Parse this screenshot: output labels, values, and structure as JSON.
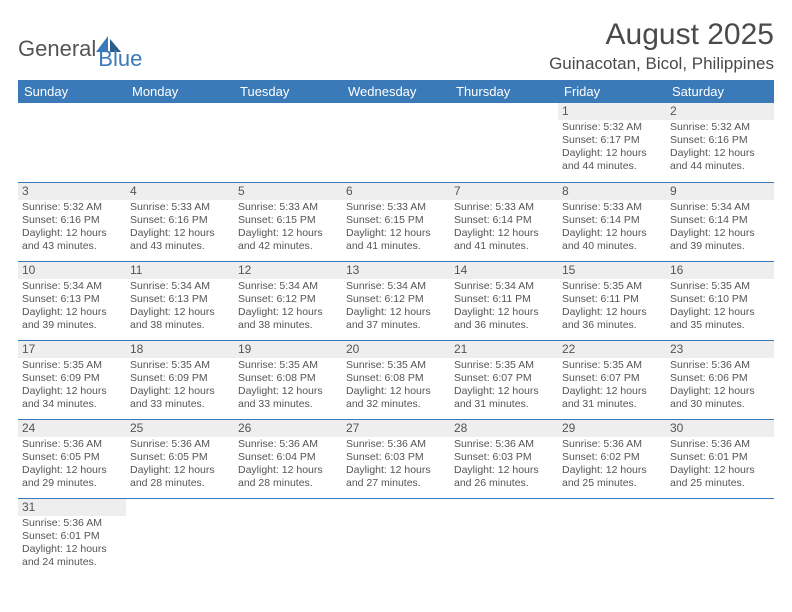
{
  "logo": {
    "text1": "General",
    "text2": "Blue"
  },
  "title": "August 2025",
  "location": "Guinacotan, Bicol, Philippines",
  "weekdays": [
    "Sunday",
    "Monday",
    "Tuesday",
    "Wednesday",
    "Thursday",
    "Friday",
    "Saturday"
  ],
  "colors": {
    "header_bg": "#3a7ab8",
    "header_fg": "#ffffff",
    "daynum_bg": "#eeeeee",
    "row_border": "#3a7ab8",
    "text": "#4a4a4a"
  },
  "weeks": [
    [
      {
        "n": "",
        "lines": []
      },
      {
        "n": "",
        "lines": []
      },
      {
        "n": "",
        "lines": []
      },
      {
        "n": "",
        "lines": []
      },
      {
        "n": "",
        "lines": []
      },
      {
        "n": "1",
        "lines": [
          "Sunrise: 5:32 AM",
          "Sunset: 6:17 PM",
          "Daylight: 12 hours and 44 minutes."
        ]
      },
      {
        "n": "2",
        "lines": [
          "Sunrise: 5:32 AM",
          "Sunset: 6:16 PM",
          "Daylight: 12 hours and 44 minutes."
        ]
      }
    ],
    [
      {
        "n": "3",
        "lines": [
          "Sunrise: 5:32 AM",
          "Sunset: 6:16 PM",
          "Daylight: 12 hours and 43 minutes."
        ]
      },
      {
        "n": "4",
        "lines": [
          "Sunrise: 5:33 AM",
          "Sunset: 6:16 PM",
          "Daylight: 12 hours and 43 minutes."
        ]
      },
      {
        "n": "5",
        "lines": [
          "Sunrise: 5:33 AM",
          "Sunset: 6:15 PM",
          "Daylight: 12 hours and 42 minutes."
        ]
      },
      {
        "n": "6",
        "lines": [
          "Sunrise: 5:33 AM",
          "Sunset: 6:15 PM",
          "Daylight: 12 hours and 41 minutes."
        ]
      },
      {
        "n": "7",
        "lines": [
          "Sunrise: 5:33 AM",
          "Sunset: 6:14 PM",
          "Daylight: 12 hours and 41 minutes."
        ]
      },
      {
        "n": "8",
        "lines": [
          "Sunrise: 5:33 AM",
          "Sunset: 6:14 PM",
          "Daylight: 12 hours and 40 minutes."
        ]
      },
      {
        "n": "9",
        "lines": [
          "Sunrise: 5:34 AM",
          "Sunset: 6:14 PM",
          "Daylight: 12 hours and 39 minutes."
        ]
      }
    ],
    [
      {
        "n": "10",
        "lines": [
          "Sunrise: 5:34 AM",
          "Sunset: 6:13 PM",
          "Daylight: 12 hours and 39 minutes."
        ]
      },
      {
        "n": "11",
        "lines": [
          "Sunrise: 5:34 AM",
          "Sunset: 6:13 PM",
          "Daylight: 12 hours and 38 minutes."
        ]
      },
      {
        "n": "12",
        "lines": [
          "Sunrise: 5:34 AM",
          "Sunset: 6:12 PM",
          "Daylight: 12 hours and 38 minutes."
        ]
      },
      {
        "n": "13",
        "lines": [
          "Sunrise: 5:34 AM",
          "Sunset: 6:12 PM",
          "Daylight: 12 hours and 37 minutes."
        ]
      },
      {
        "n": "14",
        "lines": [
          "Sunrise: 5:34 AM",
          "Sunset: 6:11 PM",
          "Daylight: 12 hours and 36 minutes."
        ]
      },
      {
        "n": "15",
        "lines": [
          "Sunrise: 5:35 AM",
          "Sunset: 6:11 PM",
          "Daylight: 12 hours and 36 minutes."
        ]
      },
      {
        "n": "16",
        "lines": [
          "Sunrise: 5:35 AM",
          "Sunset: 6:10 PM",
          "Daylight: 12 hours and 35 minutes."
        ]
      }
    ],
    [
      {
        "n": "17",
        "lines": [
          "Sunrise: 5:35 AM",
          "Sunset: 6:09 PM",
          "Daylight: 12 hours and 34 minutes."
        ]
      },
      {
        "n": "18",
        "lines": [
          "Sunrise: 5:35 AM",
          "Sunset: 6:09 PM",
          "Daylight: 12 hours and 33 minutes."
        ]
      },
      {
        "n": "19",
        "lines": [
          "Sunrise: 5:35 AM",
          "Sunset: 6:08 PM",
          "Daylight: 12 hours and 33 minutes."
        ]
      },
      {
        "n": "20",
        "lines": [
          "Sunrise: 5:35 AM",
          "Sunset: 6:08 PM",
          "Daylight: 12 hours and 32 minutes."
        ]
      },
      {
        "n": "21",
        "lines": [
          "Sunrise: 5:35 AM",
          "Sunset: 6:07 PM",
          "Daylight: 12 hours and 31 minutes."
        ]
      },
      {
        "n": "22",
        "lines": [
          "Sunrise: 5:35 AM",
          "Sunset: 6:07 PM",
          "Daylight: 12 hours and 31 minutes."
        ]
      },
      {
        "n": "23",
        "lines": [
          "Sunrise: 5:36 AM",
          "Sunset: 6:06 PM",
          "Daylight: 12 hours and 30 minutes."
        ]
      }
    ],
    [
      {
        "n": "24",
        "lines": [
          "Sunrise: 5:36 AM",
          "Sunset: 6:05 PM",
          "Daylight: 12 hours and 29 minutes."
        ]
      },
      {
        "n": "25",
        "lines": [
          "Sunrise: 5:36 AM",
          "Sunset: 6:05 PM",
          "Daylight: 12 hours and 28 minutes."
        ]
      },
      {
        "n": "26",
        "lines": [
          "Sunrise: 5:36 AM",
          "Sunset: 6:04 PM",
          "Daylight: 12 hours and 28 minutes."
        ]
      },
      {
        "n": "27",
        "lines": [
          "Sunrise: 5:36 AM",
          "Sunset: 6:03 PM",
          "Daylight: 12 hours and 27 minutes."
        ]
      },
      {
        "n": "28",
        "lines": [
          "Sunrise: 5:36 AM",
          "Sunset: 6:03 PM",
          "Daylight: 12 hours and 26 minutes."
        ]
      },
      {
        "n": "29",
        "lines": [
          "Sunrise: 5:36 AM",
          "Sunset: 6:02 PM",
          "Daylight: 12 hours and 25 minutes."
        ]
      },
      {
        "n": "30",
        "lines": [
          "Sunrise: 5:36 AM",
          "Sunset: 6:01 PM",
          "Daylight: 12 hours and 25 minutes."
        ]
      }
    ],
    [
      {
        "n": "31",
        "lines": [
          "Sunrise: 5:36 AM",
          "Sunset: 6:01 PM",
          "Daylight: 12 hours and 24 minutes."
        ]
      },
      {
        "n": "",
        "lines": []
      },
      {
        "n": "",
        "lines": []
      },
      {
        "n": "",
        "lines": []
      },
      {
        "n": "",
        "lines": []
      },
      {
        "n": "",
        "lines": []
      },
      {
        "n": "",
        "lines": []
      }
    ]
  ]
}
